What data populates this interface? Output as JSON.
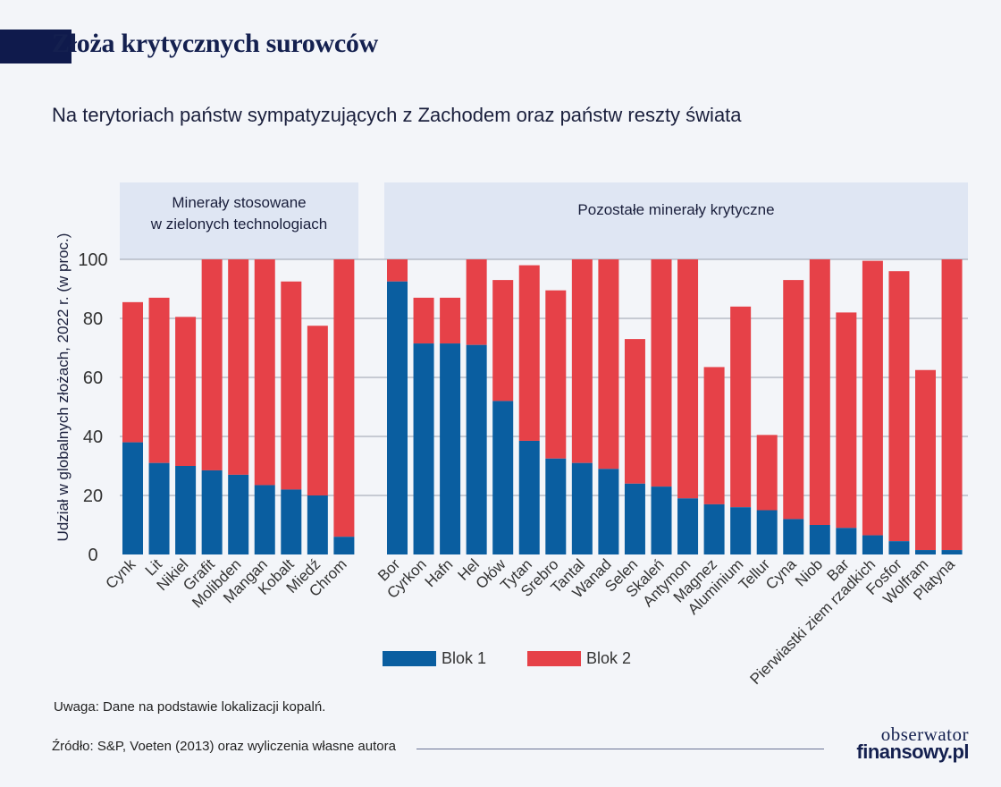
{
  "title": "Złoża krytycznych surowców",
  "subtitle": "Na terytoriach państw sympatyzujących z Zachodem oraz państw reszty świata",
  "note": "Uwaga: Dane na podstawie lokalizacji kopalń.",
  "source": "Źródło: S&P, Voeten (2013) oraz wyliczenia własne autora",
  "logo": {
    "line1": "obserwator",
    "line2": "finansowy.pl"
  },
  "colors": {
    "blok1": "#0a5ea0",
    "blok2": "#e64148",
    "panel": "#dfe6f3",
    "grid": "#9aa0ad"
  },
  "chart_data": {
    "type": "bar",
    "stacked": true,
    "ylabel": "Udział w globalnych złożach, 2022 r. (w proc.)",
    "ylim": [
      0,
      100
    ],
    "yticks": [
      0,
      20,
      40,
      60,
      80,
      100
    ],
    "grid": true,
    "legend_position": "bottom",
    "groups": [
      {
        "label": "Minerały stosowane\nw zielonych technologiach",
        "start": 0,
        "end": 8
      },
      {
        "label": "Pozostałe minerały krytyczne",
        "start": 9,
        "end": 30
      }
    ],
    "categories": [
      "Cynk",
      "Lit",
      "Nikiel",
      "Grafit",
      "Molibden",
      "Mangan",
      "Kobalt",
      "Miedź",
      "Chrom",
      "Bor",
      "Cyrkon",
      "Hafn",
      "Hel",
      "Ołów",
      "Tytan",
      "Srebro",
      "Tantal",
      "Wanad",
      "Selen",
      "Skaleń",
      "Antymon",
      "Magnez",
      "Aluminium",
      "Tellur",
      "Cyna",
      "Niob",
      "Bar",
      "Pierwiastki ziem rzadkich",
      "Fosfor",
      "Wolfram",
      "Platyna"
    ],
    "series": [
      {
        "name": "Blok 1",
        "values": [
          38,
          31,
          30,
          28.5,
          27,
          23.5,
          22,
          20,
          6,
          92.5,
          71.5,
          71.5,
          71,
          52,
          38.5,
          32.5,
          31,
          29,
          24,
          23,
          19,
          17,
          16,
          15,
          12,
          10,
          9,
          6.5,
          4.5,
          1.5,
          1.5
        ]
      },
      {
        "name": "Blok 2",
        "values": [
          47.5,
          56,
          50.5,
          71.5,
          73,
          76.5,
          70.5,
          57.5,
          94,
          7.5,
          15.5,
          15.5,
          29,
          41,
          59.5,
          57,
          69,
          71,
          49,
          77,
          81,
          46.5,
          68,
          25.5,
          81,
          90,
          73,
          93,
          91.5,
          61,
          98.5
        ]
      }
    ]
  }
}
